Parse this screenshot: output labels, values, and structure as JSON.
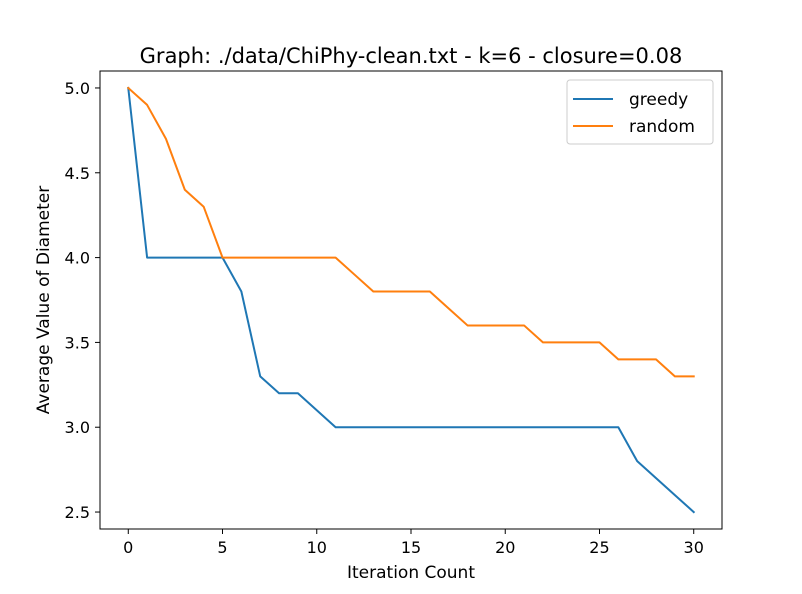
{
  "chart_data": {
    "type": "line",
    "title": "Graph: ./data/ChiPhy-clean.txt - k=6 - closure=0.08",
    "xlabel": "Iteration Count",
    "ylabel": "Average Value of Diameter",
    "xlim": [
      -1.5,
      31.5
    ],
    "ylim": [
      2.4,
      5.1
    ],
    "xticks": [
      0,
      5,
      10,
      15,
      20,
      25,
      30
    ],
    "yticks": [
      2.5,
      3.0,
      3.5,
      4.0,
      4.5,
      5.0
    ],
    "xtick_labels": [
      "0",
      "5",
      "10",
      "15",
      "20",
      "25",
      "30"
    ],
    "ytick_labels": [
      "2.5",
      "3.0",
      "3.5",
      "4.0",
      "4.5",
      "5.0"
    ],
    "grid": false,
    "legend_position": "top-right",
    "x": [
      0,
      1,
      2,
      3,
      4,
      5,
      6,
      7,
      8,
      9,
      10,
      11,
      12,
      13,
      14,
      15,
      16,
      17,
      18,
      19,
      20,
      21,
      22,
      23,
      24,
      25,
      26,
      27,
      28,
      29,
      30
    ],
    "series": [
      {
        "name": "greedy",
        "color": "#1f77b4",
        "values": [
          5.0,
          4.0,
          4.0,
          4.0,
          4.0,
          4.0,
          3.8,
          3.3,
          3.2,
          3.2,
          3.1,
          3.0,
          3.0,
          3.0,
          3.0,
          3.0,
          3.0,
          3.0,
          3.0,
          3.0,
          3.0,
          3.0,
          3.0,
          3.0,
          3.0,
          3.0,
          3.0,
          2.8,
          2.7,
          2.6,
          2.5
        ]
      },
      {
        "name": "random",
        "color": "#ff7f0e",
        "values": [
          5.0,
          4.9,
          4.7,
          4.4,
          4.3,
          4.0,
          4.0,
          4.0,
          4.0,
          4.0,
          4.0,
          4.0,
          3.9,
          3.8,
          3.8,
          3.8,
          3.8,
          3.7,
          3.6,
          3.6,
          3.6,
          3.6,
          3.5,
          3.5,
          3.5,
          3.5,
          3.4,
          3.4,
          3.4,
          3.3,
          3.3
        ]
      }
    ]
  }
}
